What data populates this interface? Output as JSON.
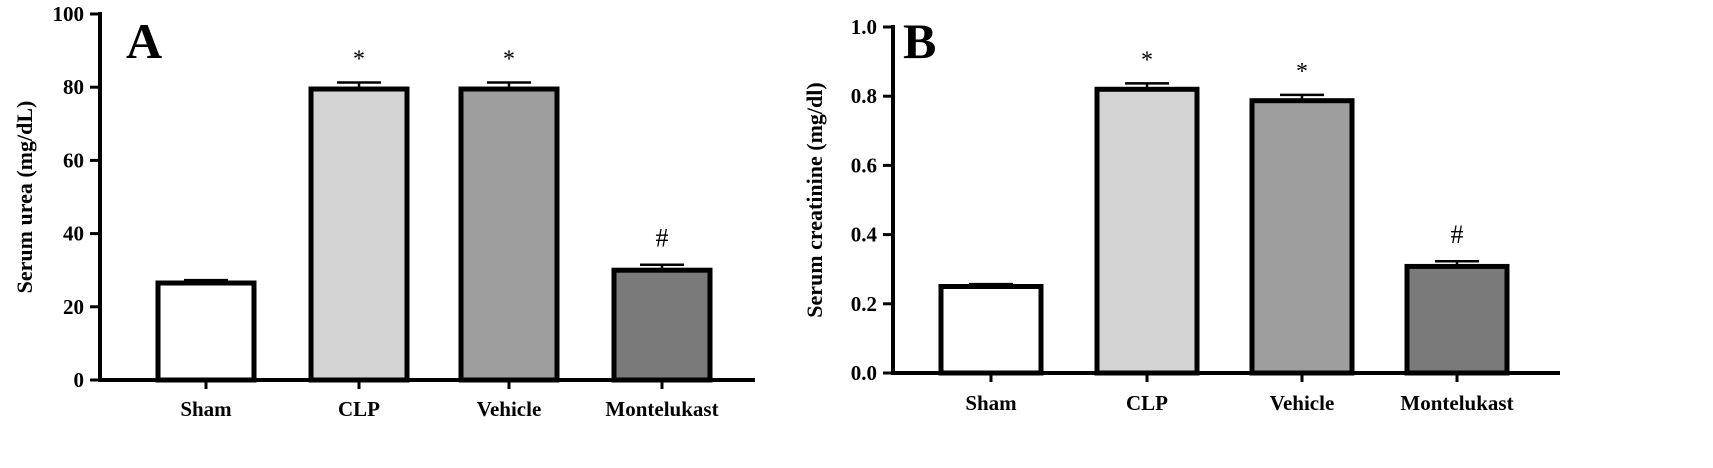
{
  "chart_data": [
    {
      "type": "bar",
      "panel_label": "A",
      "ylabel": "Serum urea (mg/dL)",
      "xlabel": "",
      "ylim": [
        0,
        100
      ],
      "yticks": [
        "0",
        "20",
        "40",
        "60",
        "80",
        "100"
      ],
      "ytick_values": [
        0,
        20,
        40,
        60,
        80,
        100
      ],
      "categories": [
        "Sham",
        "CLP",
        "Vehicle",
        "Montelukast"
      ],
      "values": [
        26.5,
        79.5,
        79.5,
        30.0
      ],
      "errors": [
        0.8,
        1.8,
        1.8,
        1.5
      ],
      "annotations": [
        "",
        "*",
        "*",
        "#"
      ],
      "bar_colors": [
        "#ffffff",
        "#d4d4d4",
        "#9e9e9e",
        "#7a7a7a"
      ]
    },
    {
      "type": "bar",
      "panel_label": "B",
      "ylabel": "Serum creatinine (mg/dl)",
      "xlabel": "",
      "ylim": [
        0,
        1.0
      ],
      "yticks": [
        "0.0",
        "0.2",
        "0.4",
        "0.6",
        "0.8",
        "1.0"
      ],
      "ytick_values": [
        0,
        0.2,
        0.4,
        0.6,
        0.8,
        1.0
      ],
      "categories": [
        "Sham",
        "CLP",
        "Vehicle",
        "Montelukast"
      ],
      "values": [
        0.25,
        0.82,
        0.787,
        0.308
      ],
      "errors": [
        0.007,
        0.017,
        0.017,
        0.015
      ],
      "annotations": [
        "",
        "*",
        "*",
        "#"
      ],
      "bar_colors": [
        "#ffffff",
        "#d4d4d4",
        "#9e9e9e",
        "#7a7a7a"
      ]
    }
  ]
}
